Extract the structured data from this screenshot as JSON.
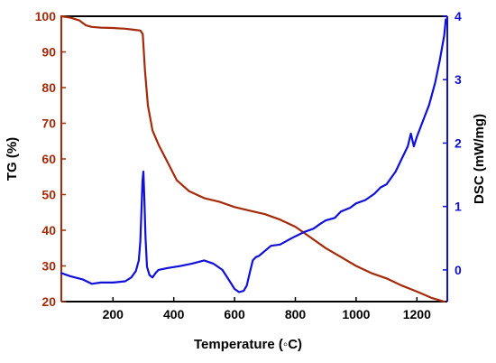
{
  "colors": {
    "tg": "#a52a0a",
    "dsc": "#1010d8",
    "frame": "#000000"
  },
  "chart_data": {
    "type": "line",
    "xlabel": "Temperature (◦C)",
    "ylabel_left": "TG (%)",
    "ylabel_right": "DSC (mW/mg)",
    "xlim": [
      30,
      1300
    ],
    "ylim_left": [
      20,
      100
    ],
    "ylim_right": [
      -0.5,
      4
    ],
    "x_ticks": [
      200,
      400,
      600,
      800,
      1000,
      1200
    ],
    "x_tick_labels": [
      "200",
      "400",
      "600",
      "800",
      "1000",
      "1200"
    ],
    "y_left_ticks": [
      20,
      30,
      40,
      50,
      60,
      70,
      80,
      90,
      100
    ],
    "y_left_tick_labels": [
      "20",
      "30",
      "40",
      "50",
      "60",
      "70",
      "80",
      "90",
      "100"
    ],
    "y_right_ticks": [
      0,
      1,
      2,
      3,
      4
    ],
    "y_right_tick_labels": [
      "0",
      "1",
      "2",
      "3",
      "4"
    ],
    "grid": false,
    "legend": "none",
    "series": [
      {
        "axis": "left",
        "x": [
          30,
          60,
          90,
          110,
          130,
          160,
          200,
          240,
          270,
          290,
          298,
          305,
          315,
          330,
          350,
          380,
          410,
          450,
          500,
          550,
          600,
          650,
          700,
          750,
          800,
          850,
          900,
          950,
          1000,
          1050,
          1100,
          1150,
          1200,
          1250,
          1290
        ],
        "y": [
          100,
          99.6,
          98.8,
          97.5,
          97.0,
          96.8,
          96.7,
          96.5,
          96.2,
          96.0,
          95.0,
          85.0,
          75.0,
          68.0,
          64.0,
          59.0,
          54.0,
          51.0,
          49.0,
          48.0,
          46.5,
          45.5,
          44.5,
          43.0,
          41.0,
          38.0,
          35.0,
          32.5,
          30.0,
          28.0,
          26.5,
          24.5,
          22.8,
          21.0,
          20.0
        ]
      },
      {
        "axis": "right",
        "x": [
          30,
          60,
          100,
          130,
          160,
          200,
          240,
          260,
          275,
          285,
          290,
          294,
          297,
          300,
          303,
          307,
          312,
          320,
          330,
          340,
          350,
          380,
          420,
          460,
          500,
          530,
          560,
          580,
          600,
          615,
          630,
          640,
          650,
          660,
          670,
          680,
          700,
          720,
          750,
          780,
          800,
          830,
          860,
          880,
          900,
          930,
          950,
          980,
          1000,
          1030,
          1060,
          1080,
          1100,
          1130,
          1150,
          1170,
          1180,
          1190,
          1200,
          1220,
          1240,
          1260,
          1275,
          1290,
          1295
        ],
        "y": [
          -0.05,
          -0.1,
          -0.15,
          -0.22,
          -0.2,
          -0.2,
          -0.18,
          -0.12,
          -0.02,
          0.15,
          0.45,
          1.0,
          1.4,
          1.55,
          1.15,
          0.5,
          0.05,
          -0.08,
          -0.12,
          -0.05,
          0.0,
          0.03,
          0.06,
          0.1,
          0.15,
          0.1,
          0.0,
          -0.15,
          -0.3,
          -0.35,
          -0.33,
          -0.25,
          -0.05,
          0.15,
          0.2,
          0.22,
          0.3,
          0.38,
          0.4,
          0.48,
          0.53,
          0.6,
          0.65,
          0.72,
          0.78,
          0.82,
          0.92,
          0.98,
          1.05,
          1.1,
          1.2,
          1.3,
          1.35,
          1.55,
          1.75,
          1.95,
          2.15,
          1.95,
          2.1,
          2.35,
          2.6,
          2.95,
          3.3,
          3.7,
          3.95
        ]
      }
    ]
  }
}
